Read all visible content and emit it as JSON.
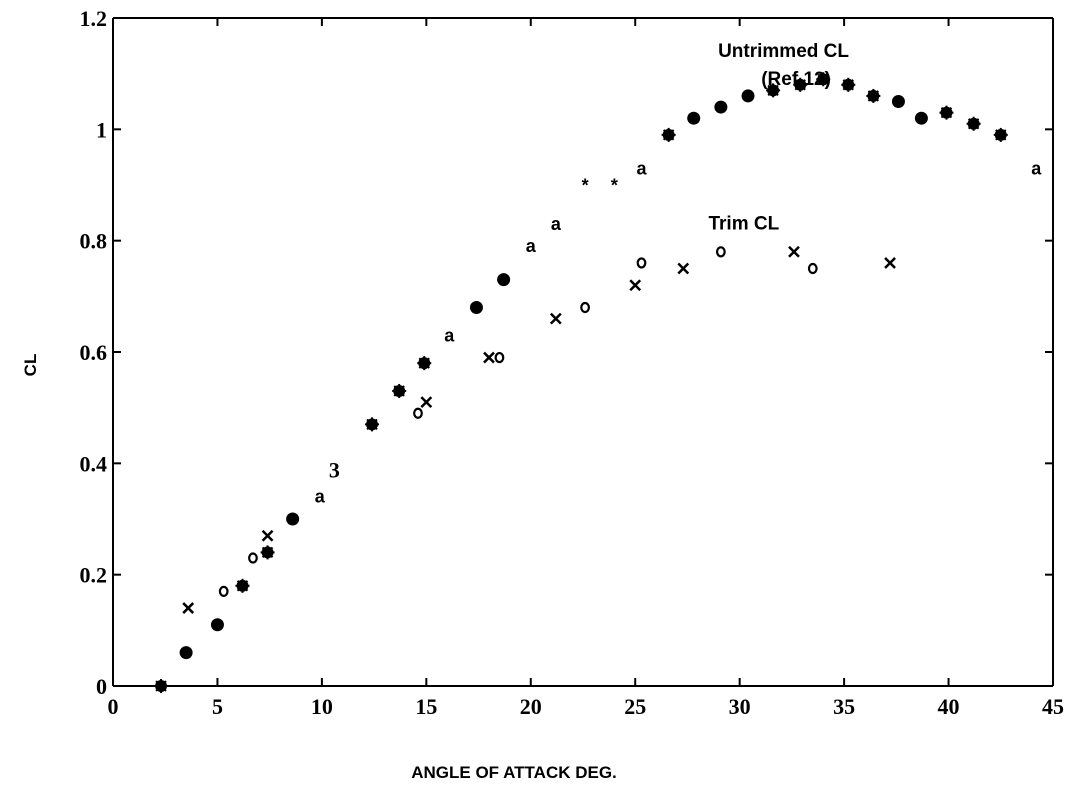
{
  "chart_data": {
    "type": "scatter",
    "xlabel": "ANGLE OF ATTACK  DEG.",
    "ylabel": "CL",
    "xlim": [
      0,
      45
    ],
    "ylim": [
      0,
      1.2
    ],
    "x_ticks": [
      "0",
      "5",
      "10",
      "15",
      "20",
      "25",
      "30",
      "35",
      "40",
      "45"
    ],
    "y_ticks": [
      "0",
      "0.2",
      "0.4",
      "0.6",
      "0.8",
      "1",
      "1.2"
    ],
    "grid": false,
    "annotations": [
      {
        "text": "Untrimmed CL",
        "x": 32.1,
        "y": 1.13
      },
      {
        "text": "(Ref.12)",
        "x": 32.7,
        "y": 1.08
      },
      {
        "text": "Trim CL",
        "x": 30.2,
        "y": 0.82
      },
      {
        "text": "3",
        "x": 10.6,
        "y": 0.375
      }
    ],
    "series": [
      {
        "name": "Untrimmed CL",
        "points": [
          {
            "x": 3.5,
            "y": 0.06,
            "m": "dot"
          },
          {
            "x": 5.0,
            "y": 0.11,
            "m": "dot"
          },
          {
            "x": 6.2,
            "y": 0.18,
            "m": "star"
          },
          {
            "x": 7.4,
            "y": 0.24,
            "m": "star"
          },
          {
            "x": 8.6,
            "y": 0.3,
            "m": "dot"
          },
          {
            "x": 9.9,
            "y": 0.34,
            "m": "a"
          },
          {
            "x": 12.4,
            "y": 0.47,
            "m": "star"
          },
          {
            "x": 13.7,
            "y": 0.53,
            "m": "star"
          },
          {
            "x": 14.9,
            "y": 0.58,
            "m": "star"
          },
          {
            "x": 16.1,
            "y": 0.63,
            "m": "a"
          },
          {
            "x": 17.4,
            "y": 0.68,
            "m": "dot"
          },
          {
            "x": 18.7,
            "y": 0.73,
            "m": "dot"
          },
          {
            "x": 20.0,
            "y": 0.79,
            "m": "a"
          },
          {
            "x": 21.2,
            "y": 0.83,
            "m": "a"
          },
          {
            "x": 22.6,
            "y": 0.91,
            "m": "asterisk"
          },
          {
            "x": 24.0,
            "y": 0.91,
            "m": "asterisk"
          },
          {
            "x": 25.3,
            "y": 0.93,
            "m": "a"
          },
          {
            "x": 26.6,
            "y": 0.99,
            "m": "star"
          },
          {
            "x": 27.8,
            "y": 1.02,
            "m": "dot"
          },
          {
            "x": 29.1,
            "y": 1.04,
            "m": "dot"
          },
          {
            "x": 30.4,
            "y": 1.06,
            "m": "dot"
          },
          {
            "x": 31.6,
            "y": 1.07,
            "m": "star"
          },
          {
            "x": 32.9,
            "y": 1.08,
            "m": "star"
          },
          {
            "x": 34.0,
            "y": 1.09,
            "m": "star"
          },
          {
            "x": 35.2,
            "y": 1.08,
            "m": "star"
          },
          {
            "x": 36.4,
            "y": 1.06,
            "m": "star"
          },
          {
            "x": 37.6,
            "y": 1.05,
            "m": "dot"
          },
          {
            "x": 38.7,
            "y": 1.02,
            "m": "dot"
          },
          {
            "x": 39.9,
            "y": 1.03,
            "m": "star"
          },
          {
            "x": 41.2,
            "y": 1.01,
            "m": "star"
          },
          {
            "x": 42.5,
            "y": 0.99,
            "m": "star"
          },
          {
            "x": 44.2,
            "y": 0.93,
            "m": "a"
          }
        ]
      },
      {
        "name": "Trim CL",
        "points": [
          {
            "x": 2.3,
            "y": 0.0,
            "m": "star"
          },
          {
            "x": 3.6,
            "y": 0.14,
            "m": "x"
          },
          {
            "x": 5.3,
            "y": 0.17,
            "m": "o"
          },
          {
            "x": 6.7,
            "y": 0.23,
            "m": "o"
          },
          {
            "x": 7.4,
            "y": 0.27,
            "m": "x"
          },
          {
            "x": 14.6,
            "y": 0.49,
            "m": "o"
          },
          {
            "x": 15.0,
            "y": 0.51,
            "m": "x"
          },
          {
            "x": 18.0,
            "y": 0.59,
            "m": "x"
          },
          {
            "x": 18.5,
            "y": 0.59,
            "m": "o"
          },
          {
            "x": 21.2,
            "y": 0.66,
            "m": "x"
          },
          {
            "x": 22.6,
            "y": 0.68,
            "m": "o"
          },
          {
            "x": 25.0,
            "y": 0.72,
            "m": "x"
          },
          {
            "x": 25.3,
            "y": 0.76,
            "m": "o"
          },
          {
            "x": 27.3,
            "y": 0.75,
            "m": "x"
          },
          {
            "x": 29.1,
            "y": 0.78,
            "m": "o"
          },
          {
            "x": 32.6,
            "y": 0.78,
            "m": "x"
          },
          {
            "x": 33.5,
            "y": 0.75,
            "m": "o"
          },
          {
            "x": 37.2,
            "y": 0.76,
            "m": "x"
          }
        ]
      }
    ]
  }
}
